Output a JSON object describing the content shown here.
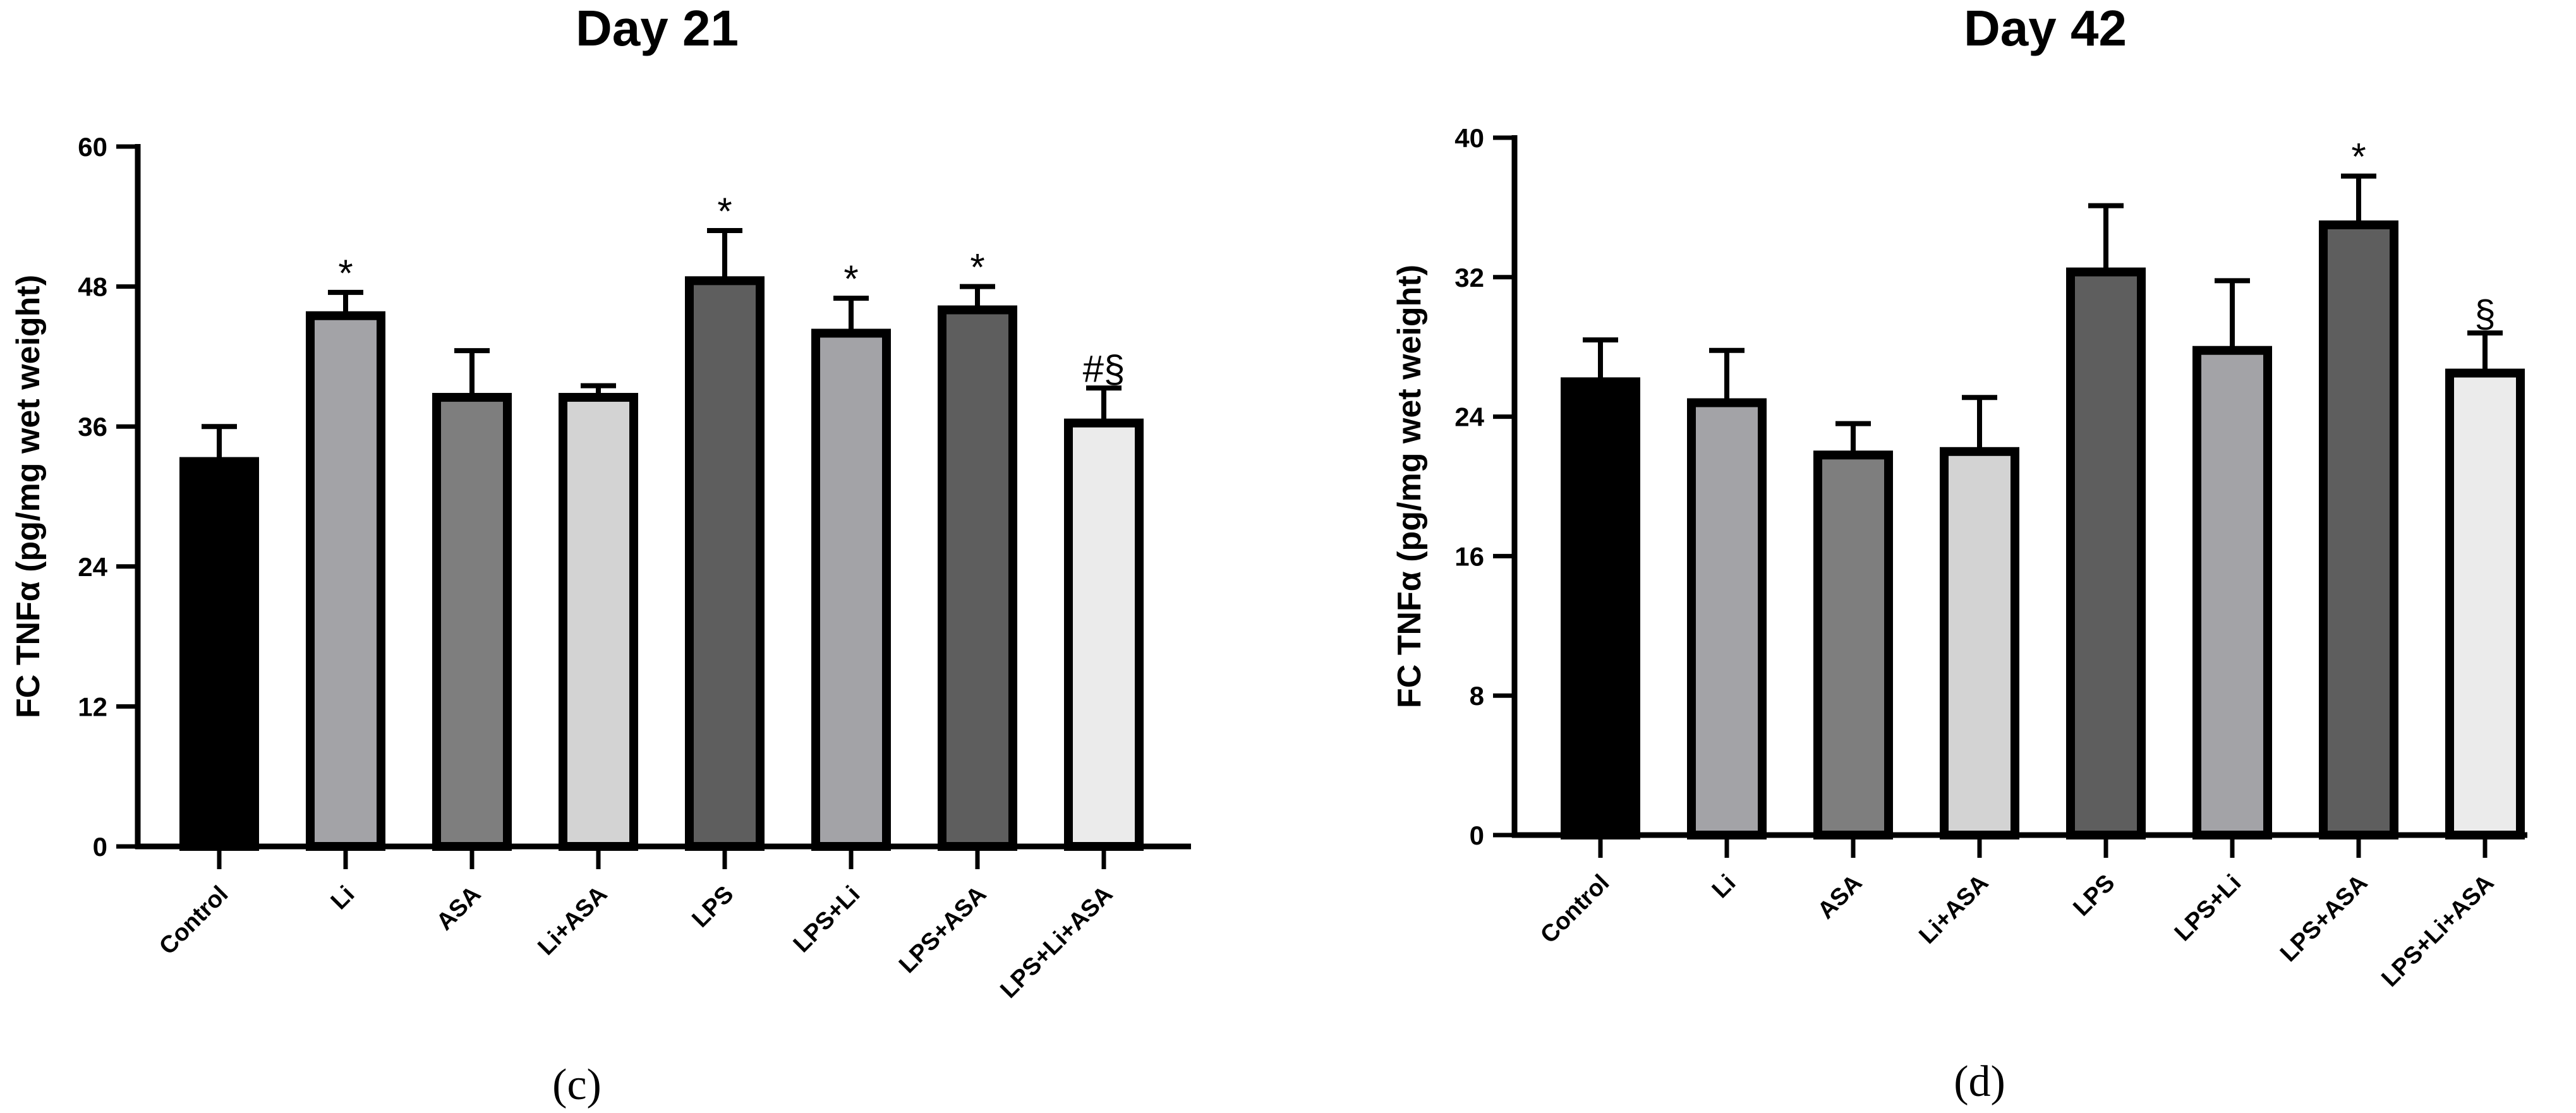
{
  "chart_data": [
    {
      "type": "bar",
      "title": "Day 21",
      "panel": "(c)",
      "ylabel": "FC TNFα (pg/mg wet weight)",
      "xlabel": "",
      "ylim": [
        0,
        60
      ],
      "yticks": [
        "0",
        "12",
        "24",
        "36",
        "48",
        "60"
      ],
      "categories": [
        "Control",
        "Li",
        "ASA",
        "Li+ASA",
        "LPS",
        "LPS+Li",
        "LPS+ASA",
        "LPS+Li+ASA"
      ],
      "values": [
        33,
        45.5,
        38.5,
        38.5,
        48.5,
        44,
        46,
        36.3
      ],
      "errors": [
        3,
        2,
        4,
        1,
        4.3,
        3,
        2,
        3
      ],
      "fills": [
        "#000000",
        "#a3a3a7",
        "#7e7e7e",
        "#d3d3d3",
        "#5e5e5e",
        "#a3a3a7",
        "#5e5e5e",
        "#ebebeb"
      ],
      "annotations": [
        "",
        "*",
        "",
        "",
        "*",
        "*",
        "*",
        "#§"
      ]
    },
    {
      "type": "bar",
      "title": "Day 42",
      "panel": "(d)",
      "ylabel": "FC TNFα (pg/mg  wet weight)",
      "xlabel": "",
      "ylim": [
        0,
        40
      ],
      "yticks": [
        "0",
        "8",
        "16",
        "24",
        "32",
        "40"
      ],
      "categories": [
        "Control",
        "Li",
        "ASA",
        "Li+ASA",
        "LPS",
        "LPS+Li",
        "LPS+ASA",
        "LPS+Li+ASA"
      ],
      "values": [
        26,
        24.8,
        21.8,
        22,
        32.3,
        27.8,
        35,
        26.5
      ],
      "errors": [
        2.4,
        3,
        1.8,
        3.1,
        3.8,
        4,
        2.8,
        2.3
      ],
      "fills": [
        "#000000",
        "#a3a3a7",
        "#7e7e7e",
        "#d3d3d3",
        "#5e5e5e",
        "#a3a3a7",
        "#5e5e5e",
        "#ebebeb"
      ],
      "annotations": [
        "",
        "",
        "",
        "",
        "",
        "",
        "*",
        "§"
      ]
    }
  ]
}
